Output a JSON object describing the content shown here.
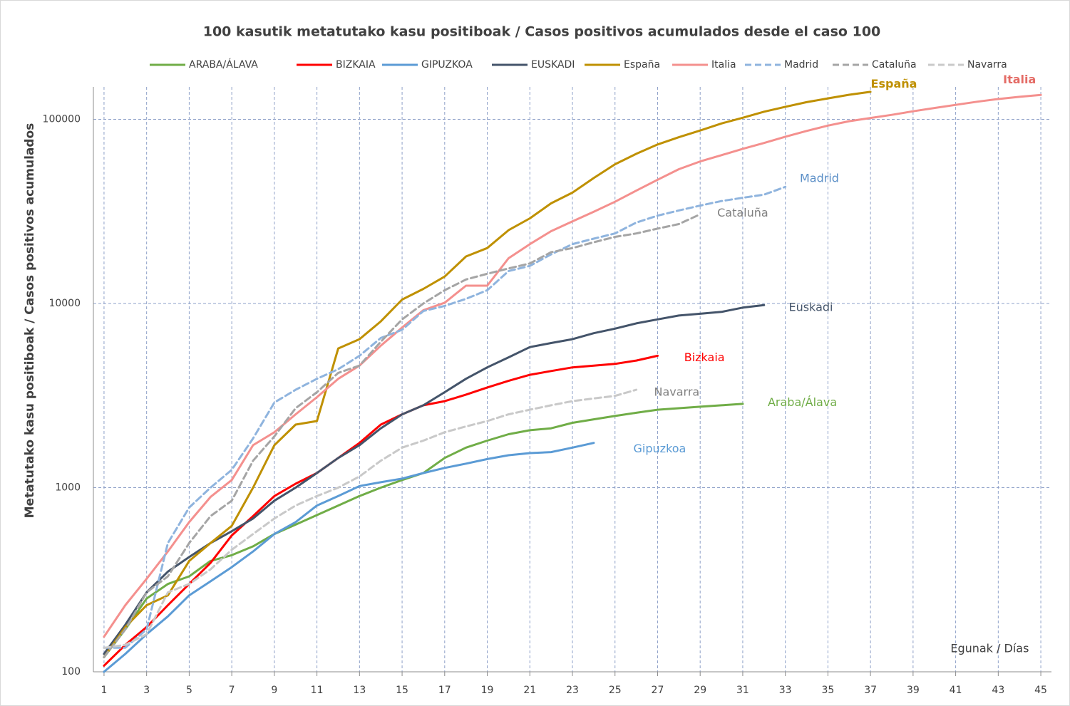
{
  "chart_data": {
    "type": "line",
    "title": "100 kasutik metatutako kasu positiboak / Casos positivos acumulados desde el caso 100",
    "y_label": "Metatutako kasu positiboak / Casos positivos acumulados",
    "log_y": true,
    "grid": true,
    "legend": "top",
    "x": [
      1,
      2,
      3,
      4,
      5,
      6,
      7,
      8,
      9,
      10,
      11,
      12,
      13,
      14,
      15,
      16,
      17,
      18,
      19,
      20,
      21,
      22,
      23,
      24,
      25,
      26,
      27,
      28,
      29,
      30,
      31,
      32,
      33,
      34,
      35,
      36,
      37,
      38,
      39,
      40,
      41,
      42,
      43,
      44,
      45
    ],
    "xlim": [
      0.5,
      45.5
    ],
    "xticks": [
      1,
      3,
      5,
      7,
      9,
      11,
      13,
      15,
      17,
      19,
      21,
      23,
      25,
      27,
      29,
      31,
      33,
      35,
      37,
      39,
      41,
      43,
      45
    ],
    "ylim": [
      100,
      150000
    ],
    "yticks": [
      100,
      1000,
      10000,
      100000
    ],
    "series": [
      {
        "name": "ARABA/ÁLAVA",
        "color": "#70ad47",
        "dash": false,
        "values": [
          120,
          170,
          250,
          300,
          330,
          400,
          430,
          480,
          560,
          630,
          710,
          800,
          900,
          1000,
          1100,
          1200,
          1450,
          1650,
          1800,
          1950,
          2050,
          2100,
          2250,
          2350,
          2450,
          2550,
          2650,
          2700,
          2750,
          2800,
          2850,
          null,
          null,
          null,
          null,
          null,
          null,
          null,
          null,
          null,
          null,
          null,
          null,
          null,
          null
        ]
      },
      {
        "name": "BIZKAIA",
        "color": "#ff0000",
        "dash": false,
        "values": [
          108,
          140,
          175,
          230,
          300,
          390,
          550,
          700,
          900,
          1050,
          1200,
          1450,
          1750,
          2200,
          2500,
          2800,
          2950,
          3200,
          3500,
          3800,
          4100,
          4300,
          4500,
          4600,
          4700,
          4900,
          5200,
          null,
          null,
          null,
          null,
          null,
          null,
          null,
          null,
          null,
          null,
          null,
          null,
          null,
          null,
          null,
          null,
          null,
          null
        ]
      },
      {
        "name": "GIPUZKOA",
        "color": "#5b9bd5",
        "dash": false,
        "values": [
          100,
          125,
          160,
          200,
          260,
          310,
          370,
          450,
          560,
          650,
          800,
          900,
          1020,
          1070,
          1120,
          1200,
          1280,
          1350,
          1430,
          1500,
          1540,
          1560,
          1650,
          1750,
          null,
          null,
          null,
          null,
          null,
          null,
          null,
          null,
          null,
          null,
          null,
          null,
          null,
          null,
          null,
          null,
          null,
          null,
          null,
          null,
          null
        ]
      },
      {
        "name": "EUSKADI",
        "color": "#44546a",
        "dash": false,
        "values": [
          125,
          180,
          270,
          350,
          420,
          500,
          580,
          680,
          850,
          1000,
          1200,
          1450,
          1700,
          2100,
          2500,
          2800,
          3300,
          3900,
          4500,
          5100,
          5800,
          6100,
          6400,
          6900,
          7300,
          7800,
          8200,
          8600,
          8800,
          9000,
          9500,
          9800,
          null,
          null,
          null,
          null,
          null,
          null,
          null,
          null,
          null,
          null,
          null,
          null,
          null
        ]
      },
      {
        "name": "España",
        "color": "#bf9000",
        "dash": false,
        "values": [
          120,
          175,
          230,
          260,
          400,
          500,
          620,
          1000,
          1700,
          2200,
          2300,
          5700,
          6400,
          8000,
          10500,
          12000,
          14000,
          18000,
          20000,
          25000,
          29000,
          35000,
          40000,
          48000,
          57000,
          65000,
          73000,
          80000,
          87000,
          95000,
          102000,
          110000,
          117000,
          124000,
          130000,
          136000,
          141000,
          null,
          null,
          null,
          null,
          null,
          null,
          null,
          null
        ]
      },
      {
        "name": "Italia",
        "color": "#f4908e",
        "dash": false,
        "values": [
          155,
          230,
          320,
          450,
          650,
          890,
          1100,
          1700,
          2000,
          2500,
          3100,
          3900,
          4600,
          5900,
          7400,
          9200,
          10100,
          12500,
          12500,
          17600,
          21000,
          24700,
          27900,
          31500,
          35700,
          41000,
          47000,
          53600,
          59100,
          63900,
          69200,
          74400,
          80500,
          86500,
          92500,
          97700,
          101700,
          105800,
          110600,
          115200,
          119800,
          124600,
          128900,
          132500,
          135600
        ]
      },
      {
        "name": "Madrid",
        "color": "#8fb4de",
        "dash": true,
        "values": [
          135,
          135,
          170,
          500,
          780,
          1000,
          1250,
          1850,
          2900,
          3400,
          3900,
          4400,
          5200,
          6500,
          7200,
          9100,
          9700,
          10600,
          11800,
          15000,
          16000,
          18500,
          21000,
          22500,
          24000,
          27500,
          30000,
          32000,
          34000,
          36000,
          37500,
          39000,
          43000,
          null,
          null,
          null,
          null,
          null,
          null,
          null,
          null,
          null,
          null,
          null,
          null
        ]
      },
      {
        "name": "Cataluña",
        "color": "#a5a5a5",
        "dash": true,
        "values": [
          120,
          170,
          270,
          330,
          500,
          700,
          850,
          1400,
          1900,
          2700,
          3300,
          4200,
          4600,
          6200,
          8200,
          10000,
          11800,
          13500,
          14500,
          15500,
          16500,
          19000,
          20000,
          21500,
          23000,
          24000,
          25500,
          27000,
          30500,
          null,
          null,
          null,
          null,
          null,
          null,
          null,
          null,
          null,
          null,
          null,
          null,
          null,
          null,
          null,
          null
        ]
      },
      {
        "name": "Navarra",
        "color": "#c9c9c9",
        "dash": true,
        "values": [
          135,
          140,
          160,
          270,
          300,
          360,
          460,
          560,
          680,
          800,
          900,
          1000,
          1150,
          1400,
          1650,
          1800,
          2000,
          2150,
          2300,
          2500,
          2650,
          2800,
          2950,
          3050,
          3150,
          3400,
          null,
          null,
          null,
          null,
          null,
          null,
          null,
          null,
          null,
          null,
          null,
          null,
          null,
          null,
          null,
          null,
          null,
          null,
          null
        ]
      }
    ],
    "annotations": [
      {
        "text": "España",
        "x": 38.1,
        "y": 155000,
        "color": "#bf9000",
        "bold": true
      },
      {
        "text": "Italia",
        "x": 44,
        "y": 163000,
        "color": "#e46c66",
        "bold": true
      },
      {
        "text": "Madrid",
        "x": 34.6,
        "y": 47600,
        "color": "#5b8fc7",
        "bold": false
      },
      {
        "text": "Cataluña",
        "x": 31,
        "y": 30800,
        "color": "#808080",
        "bold": false
      },
      {
        "text": "Euskadi",
        "x": 34.2,
        "y": 9500,
        "color": "#44546a",
        "bold": false
      },
      {
        "text": "Bizkaia",
        "x": 29.2,
        "y": 5070,
        "color": "#ff0000",
        "bold": false
      },
      {
        "text": "Navarra",
        "x": 27.9,
        "y": 3280,
        "color": "#808080",
        "bold": false
      },
      {
        "text": "Araba/Álava",
        "x": 33.8,
        "y": 2890,
        "color": "#70ad47",
        "bold": false
      },
      {
        "text": "Gipuzkoa",
        "x": 27.1,
        "y": 1620,
        "color": "#5b9bd5",
        "bold": false
      },
      {
        "text": "Egunak / Días",
        "x": 42.6,
        "y": 133,
        "color": "#404040",
        "bold": false
      }
    ]
  }
}
